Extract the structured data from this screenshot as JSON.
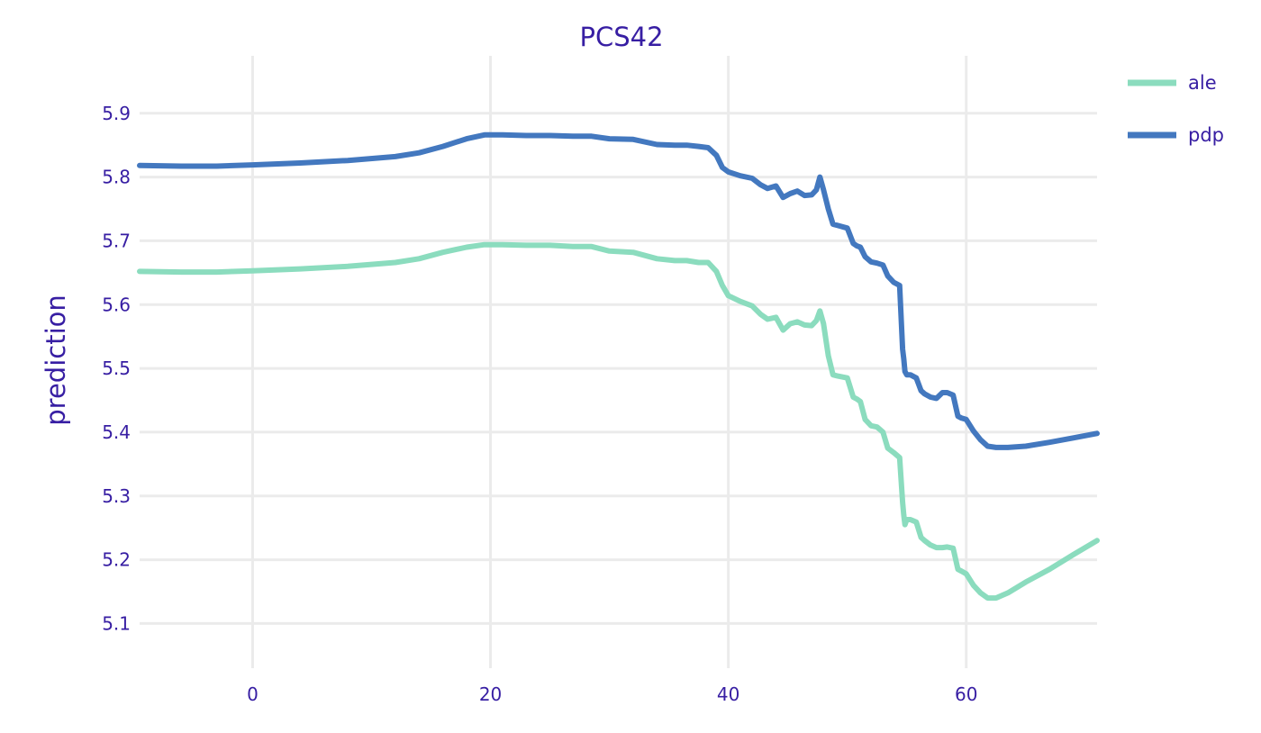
{
  "text_color": "#371ea3",
  "chart_data": {
    "type": "line",
    "title": "PCS42",
    "xlabel": "",
    "ylabel": "prediction",
    "xlim": [
      -9.5,
      71
    ],
    "ylim": [
      5.03,
      5.99
    ],
    "x_ticks": [
      0,
      20,
      40,
      60
    ],
    "y_ticks": [
      5.1,
      5.2,
      5.3,
      5.4,
      5.5,
      5.6,
      5.7,
      5.8,
      5.9
    ],
    "grid": true,
    "legend_position": "top-right",
    "series": [
      {
        "name": "ale",
        "color": "#8bdcbe",
        "x": [
          -9.5,
          -6,
          -3,
          0,
          4,
          8,
          12,
          14,
          16,
          18,
          19.5,
          21,
          23,
          25,
          27,
          28.5,
          30,
          32,
          34,
          35.5,
          36.5,
          37.5,
          38.3,
          39,
          39.5,
          40,
          41,
          42,
          42.7,
          43.3,
          44,
          44.6,
          45.2,
          45.8,
          46.4,
          47,
          47.4,
          47.7,
          48,
          48.4,
          48.8,
          49.2,
          50,
          50.5,
          50.8,
          51.1,
          51.5,
          52,
          52.5,
          53,
          53.4,
          53.9,
          54.4,
          54.65,
          54.75,
          54.85,
          55,
          55.3,
          55.8,
          56.2,
          56.5,
          57,
          57.5,
          58,
          58.4,
          58.9,
          59.3,
          59.6,
          60,
          60.6,
          61.2,
          61.8,
          62.5,
          63.5,
          65,
          67,
          69,
          71
        ],
        "y": [
          5.652,
          5.651,
          5.651,
          5.653,
          5.656,
          5.66,
          5.666,
          5.672,
          5.682,
          5.69,
          5.694,
          5.694,
          5.693,
          5.693,
          5.691,
          5.691,
          5.684,
          5.682,
          5.672,
          5.669,
          5.669,
          5.666,
          5.666,
          5.652,
          5.63,
          5.614,
          5.605,
          5.598,
          5.585,
          5.577,
          5.58,
          5.56,
          5.57,
          5.573,
          5.568,
          5.567,
          5.575,
          5.59,
          5.57,
          5.52,
          5.49,
          5.488,
          5.485,
          5.455,
          5.452,
          5.448,
          5.42,
          5.41,
          5.408,
          5.4,
          5.375,
          5.368,
          5.36,
          5.29,
          5.27,
          5.255,
          5.263,
          5.263,
          5.259,
          5.235,
          5.23,
          5.223,
          5.219,
          5.219,
          5.22,
          5.218,
          5.185,
          5.182,
          5.178,
          5.16,
          5.148,
          5.14,
          5.14,
          5.148,
          5.165,
          5.185,
          5.208,
          5.23
        ]
      },
      {
        "name": "pdp",
        "color": "#4378bf",
        "x": [
          -9.5,
          -6,
          -3,
          0,
          4,
          8,
          12,
          14,
          16,
          18,
          19.5,
          21,
          23,
          25,
          27,
          28.5,
          30,
          32,
          34,
          35.5,
          36.5,
          37.5,
          38.3,
          39,
          39.5,
          40,
          41,
          42,
          42.7,
          43.3,
          44,
          44.6,
          45.2,
          45.8,
          46.4,
          47,
          47.4,
          47.7,
          48,
          48.4,
          48.8,
          49.2,
          50,
          50.5,
          50.8,
          51.1,
          51.5,
          52,
          52.5,
          53,
          53.4,
          53.9,
          54.4,
          54.65,
          54.75,
          54.85,
          55,
          55.3,
          55.8,
          56.2,
          56.5,
          57,
          57.5,
          58,
          58.4,
          58.9,
          59.3,
          59.6,
          60,
          60.6,
          61.2,
          61.8,
          62.5,
          63.5,
          65,
          67,
          69,
          71
        ],
        "y": [
          5.818,
          5.817,
          5.817,
          5.819,
          5.822,
          5.826,
          5.832,
          5.838,
          5.848,
          5.86,
          5.866,
          5.866,
          5.865,
          5.865,
          5.864,
          5.864,
          5.86,
          5.859,
          5.851,
          5.85,
          5.85,
          5.848,
          5.846,
          5.834,
          5.815,
          5.808,
          5.802,
          5.798,
          5.788,
          5.782,
          5.786,
          5.768,
          5.774,
          5.778,
          5.771,
          5.772,
          5.78,
          5.8,
          5.78,
          5.75,
          5.726,
          5.724,
          5.72,
          5.696,
          5.692,
          5.69,
          5.675,
          5.667,
          5.665,
          5.662,
          5.645,
          5.635,
          5.63,
          5.53,
          5.515,
          5.495,
          5.49,
          5.49,
          5.485,
          5.465,
          5.46,
          5.455,
          5.453,
          5.462,
          5.462,
          5.458,
          5.425,
          5.422,
          5.42,
          5.402,
          5.388,
          5.378,
          5.376,
          5.376,
          5.378,
          5.384,
          5.391,
          5.398
        ]
      }
    ]
  }
}
